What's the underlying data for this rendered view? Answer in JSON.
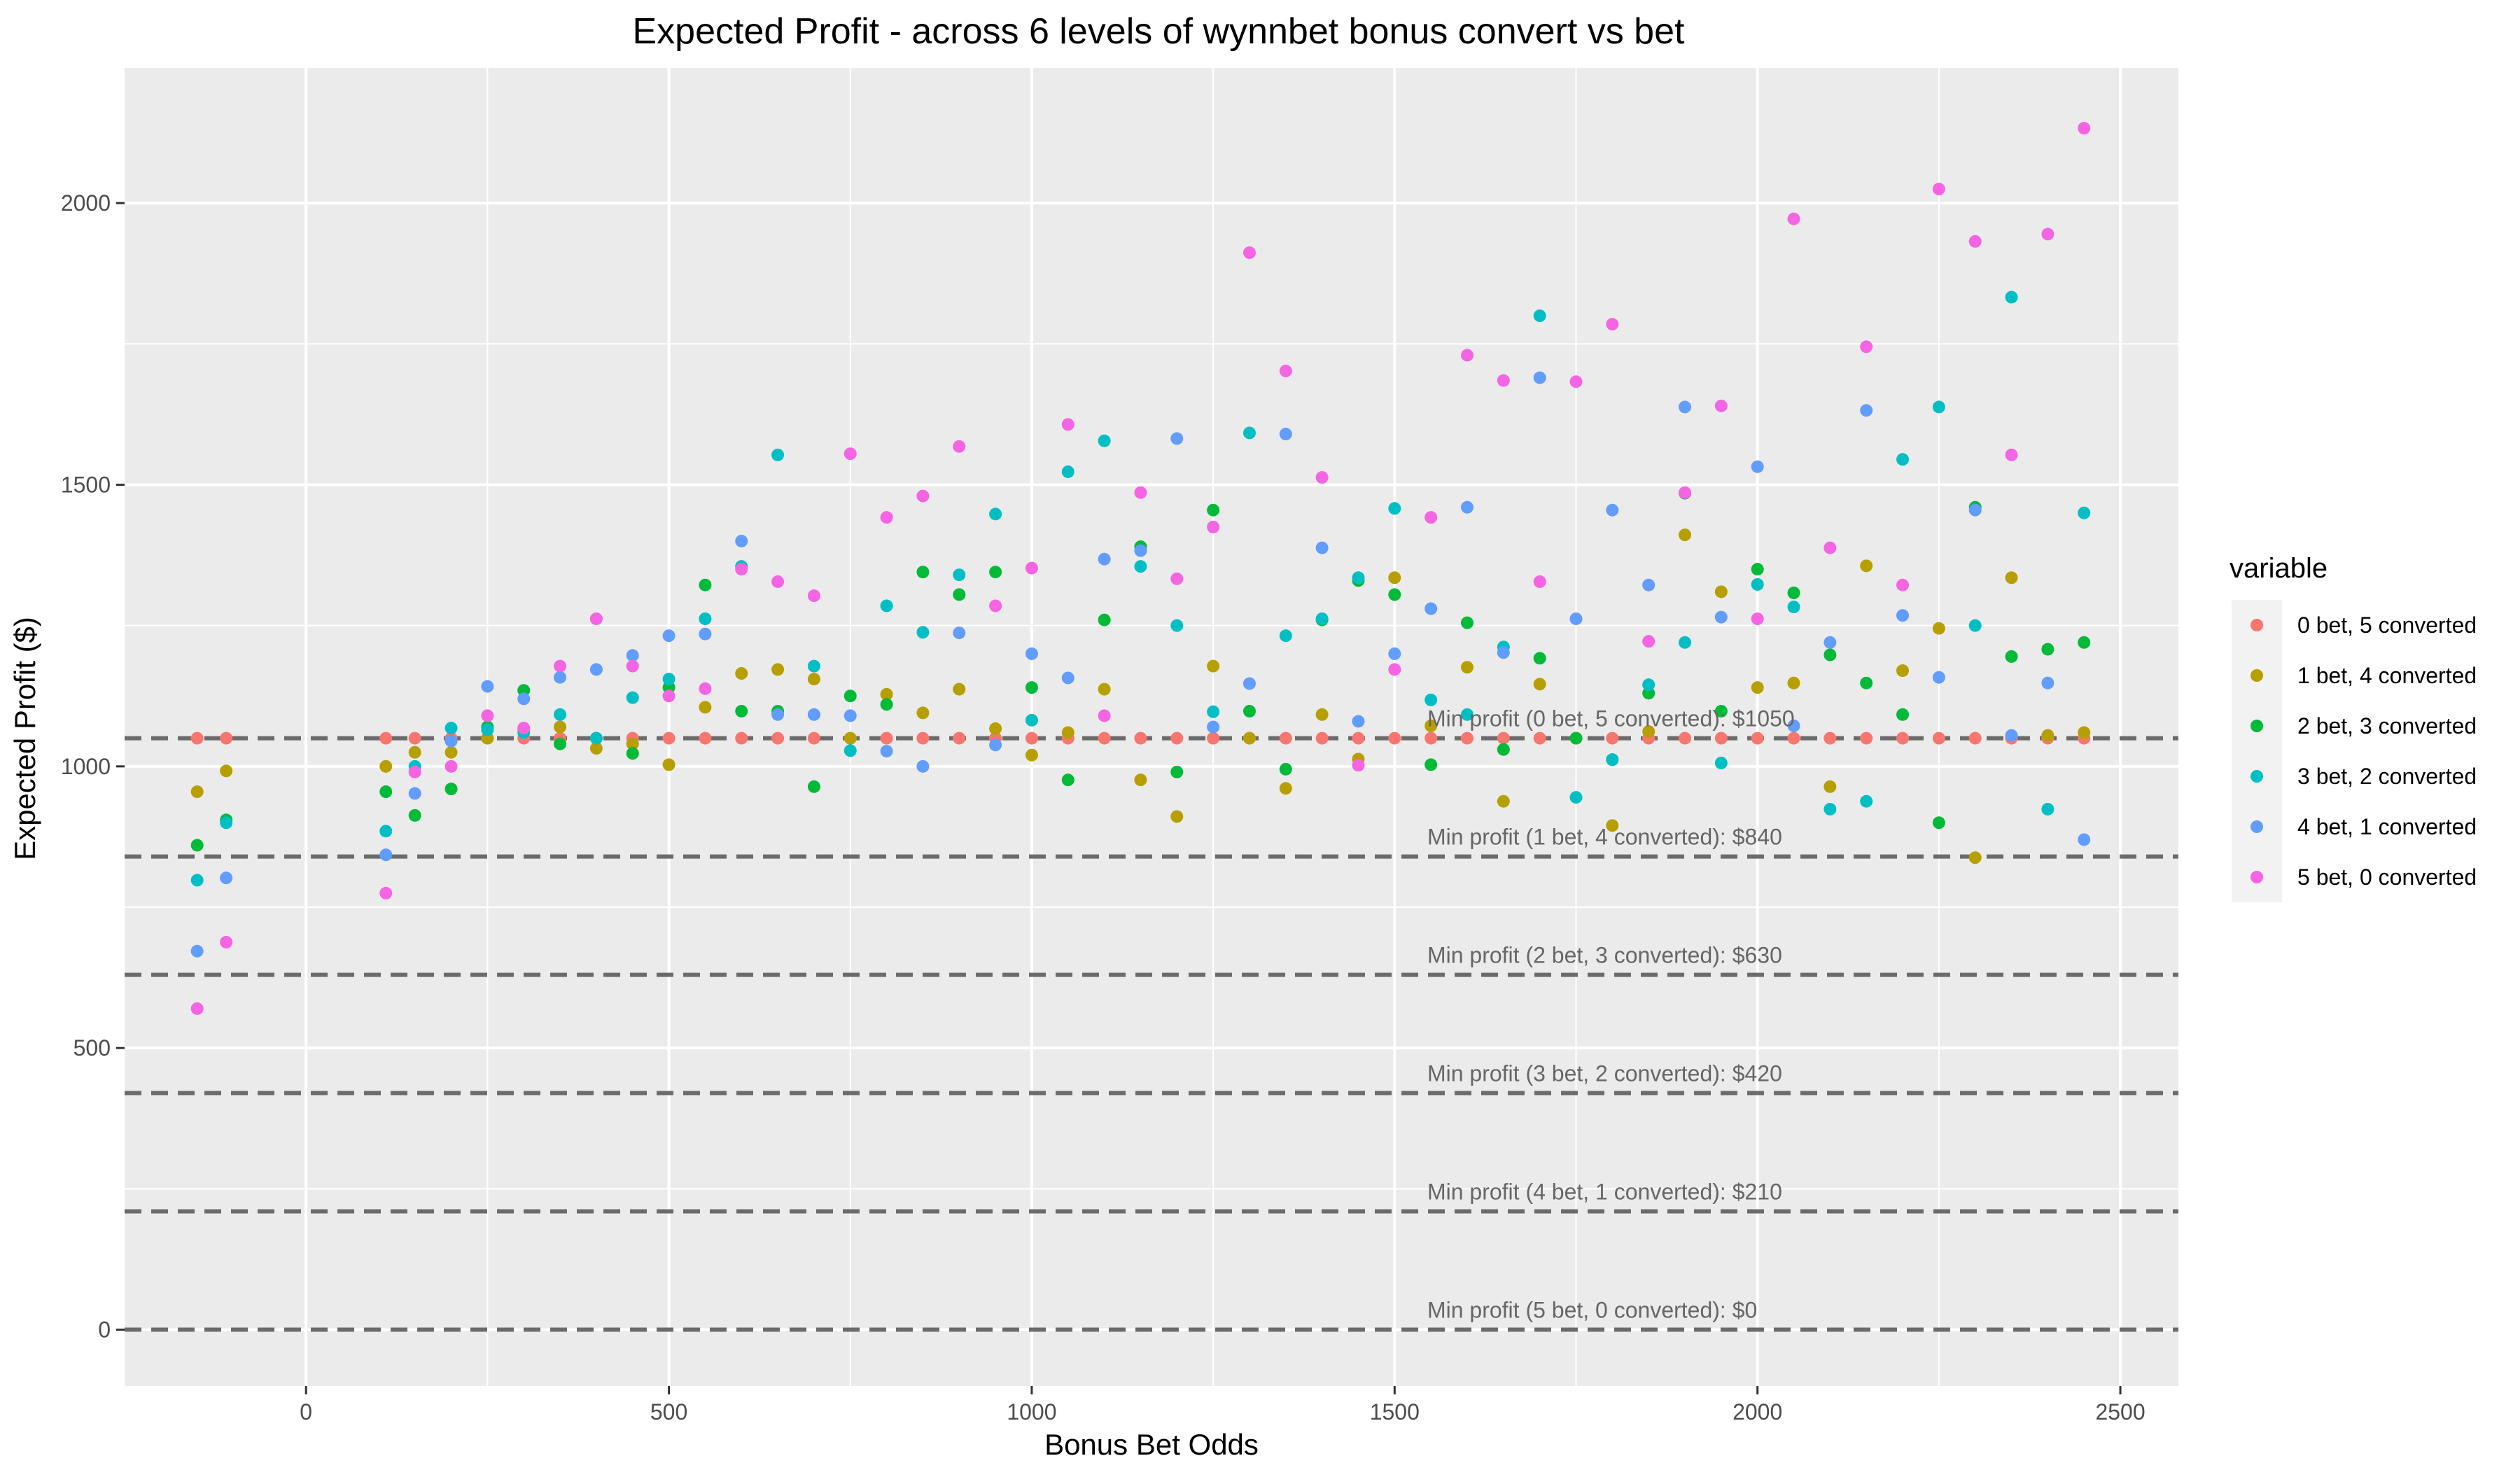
{
  "chart_data": {
    "type": "scatter",
    "title": "Expected Profit - across 6 levels of wynnbet bonus convert vs bet",
    "xlabel": "Bonus Bet Odds",
    "ylabel": "Expected Profit ($)",
    "xlim": [
      -250,
      2580
    ],
    "ylim": [
      -100,
      2240
    ],
    "x_ticks": [
      0,
      500,
      1000,
      1500,
      2000,
      2500
    ],
    "y_ticks": [
      0,
      500,
      1000,
      1500,
      2000
    ],
    "grid": true,
    "legend": {
      "title": "variable",
      "position": "right"
    },
    "reference_lines": [
      {
        "y": 1050,
        "label": "Min profit (0 bet, 5 converted): $1050"
      },
      {
        "y": 840,
        "label": "Min profit (1 bet, 4 converted): $840"
      },
      {
        "y": 630,
        "label": "Min profit (2 bet, 3 converted): $630"
      },
      {
        "y": 420,
        "label": "Min profit (3 bet, 2 converted): $420"
      },
      {
        "y": 210,
        "label": "Min profit (4 bet, 1 converted): $210"
      },
      {
        "y": 0,
        "label": "Min profit (5 bet, 0 converted): $0"
      }
    ],
    "x": [
      -150,
      -110,
      110,
      150,
      200,
      250,
      300,
      350,
      400,
      450,
      500,
      550,
      600,
      650,
      700,
      750,
      800,
      850,
      900,
      950,
      1000,
      1050,
      1100,
      1150,
      1200,
      1250,
      1300,
      1350,
      1400,
      1450,
      1500,
      1550,
      1600,
      1650,
      1700,
      1750,
      1800,
      1850,
      1900,
      1950,
      2000,
      2050,
      2100,
      2150,
      2200,
      2250,
      2300,
      2350,
      2400,
      2450
    ],
    "series": [
      {
        "name": "0 bet, 5 converted",
        "color": "#F8766D",
        "values": [
          1050,
          1050,
          1050,
          1050,
          1050,
          1050,
          1050,
          1050,
          1050,
          1050,
          1050,
          1050,
          1050,
          1050,
          1050,
          1050,
          1050,
          1050,
          1050,
          1050,
          1050,
          1050,
          1050,
          1050,
          1050,
          1050,
          1050,
          1050,
          1050,
          1050,
          1050,
          1050,
          1050,
          1050,
          1050,
          1050,
          1050,
          1050,
          1050,
          1050,
          1050,
          1050,
          1050,
          1050,
          1050,
          1050,
          1050,
          1050,
          1050,
          1050
        ]
      },
      {
        "name": "1 bet, 4 converted",
        "color": "#B79F00",
        "values": [
          955,
          992,
          1000,
          1025,
          1025,
          1050,
          1065,
          1070,
          1032,
          1040,
          1003,
          1105,
          1165,
          1172,
          1155,
          1050,
          1128,
          1095,
          1137,
          1067,
          1020,
          1060,
          1137,
          976,
          911,
          1178,
          1050,
          961,
          1092,
          1013,
          1335,
          1072,
          1176,
          938,
          1146,
          1050,
          895,
          1062,
          1411,
          1310,
          1140,
          1148,
          964,
          1356,
          1170,
          1245,
          838,
          1335,
          1055,
          1060
        ]
      },
      {
        "name": "2 bet, 3 converted",
        "color": "#00BA38",
        "values": [
          860,
          905,
          955,
          913,
          960,
          1070,
          1135,
          1040,
          1050,
          1023,
          1140,
          1322,
          1098,
          1098,
          964,
          1125,
          1110,
          1345,
          1305,
          1345,
          1140,
          976,
          1260,
          1390,
          990,
          1455,
          1098,
          995,
          1260,
          1330,
          1305,
          1003,
          1255,
          1030,
          1192,
          1050,
          1012,
          1130,
          1485,
          1098,
          1350,
          1308,
          1198,
          1148,
          1092,
          900,
          1460,
          1195,
          1208,
          1220
        ]
      },
      {
        "name": "3 bet, 2 converted",
        "color": "#00BFC4",
        "values": [
          798,
          900,
          885,
          1000,
          1068,
          1065,
          1060,
          1092,
          1050,
          1122,
          1155,
          1262,
          1355,
          1553,
          1178,
          1028,
          1285,
          1238,
          1340,
          1448,
          1082,
          1523,
          1578,
          1355,
          1250,
          1097,
          1592,
          1232,
          1262,
          1335,
          1458,
          1118,
          1092,
          1212,
          1800,
          945,
          1012,
          1145,
          1220,
          1006,
          1323,
          1283,
          924,
          938,
          1545,
          1638,
          1250,
          1833,
          924,
          1450
        ]
      },
      {
        "name": "4 bet, 1 converted",
        "color": "#619CFF",
        "values": [
          672,
          802,
          843,
          952,
          1045,
          1142,
          1120,
          1158,
          1172,
          1197,
          1232,
          1235,
          1400,
          1092,
          1092,
          1090,
          1027,
          1000,
          1237,
          1038,
          1200,
          1157,
          1368,
          1383,
          1582,
          1070,
          1147,
          1590,
          1388,
          1080,
          1200,
          1280,
          1460,
          1202,
          1690,
          1262,
          1455,
          1322,
          1638,
          1265,
          1532,
          1072,
          1220,
          1632,
          1268,
          1158,
          1455,
          1055,
          1148,
          870
        ]
      },
      {
        "name": "5 bet, 0 converted",
        "color": "#F564E3",
        "values": [
          570,
          688,
          775,
          990,
          1000,
          1090,
          1068,
          1178,
          1262,
          1178,
          1125,
          1138,
          1350,
          1328,
          1303,
          1555,
          1442,
          1480,
          1568,
          1285,
          1352,
          1607,
          1090,
          1486,
          1333,
          1425,
          1912,
          1702,
          1513,
          1002,
          1172,
          1442,
          1730,
          1685,
          1328,
          1683,
          1785,
          1222,
          1486,
          1640,
          1262,
          1972,
          1388,
          1745,
          1322,
          2025,
          1932,
          1553,
          1945,
          2133
        ]
      }
    ]
  }
}
